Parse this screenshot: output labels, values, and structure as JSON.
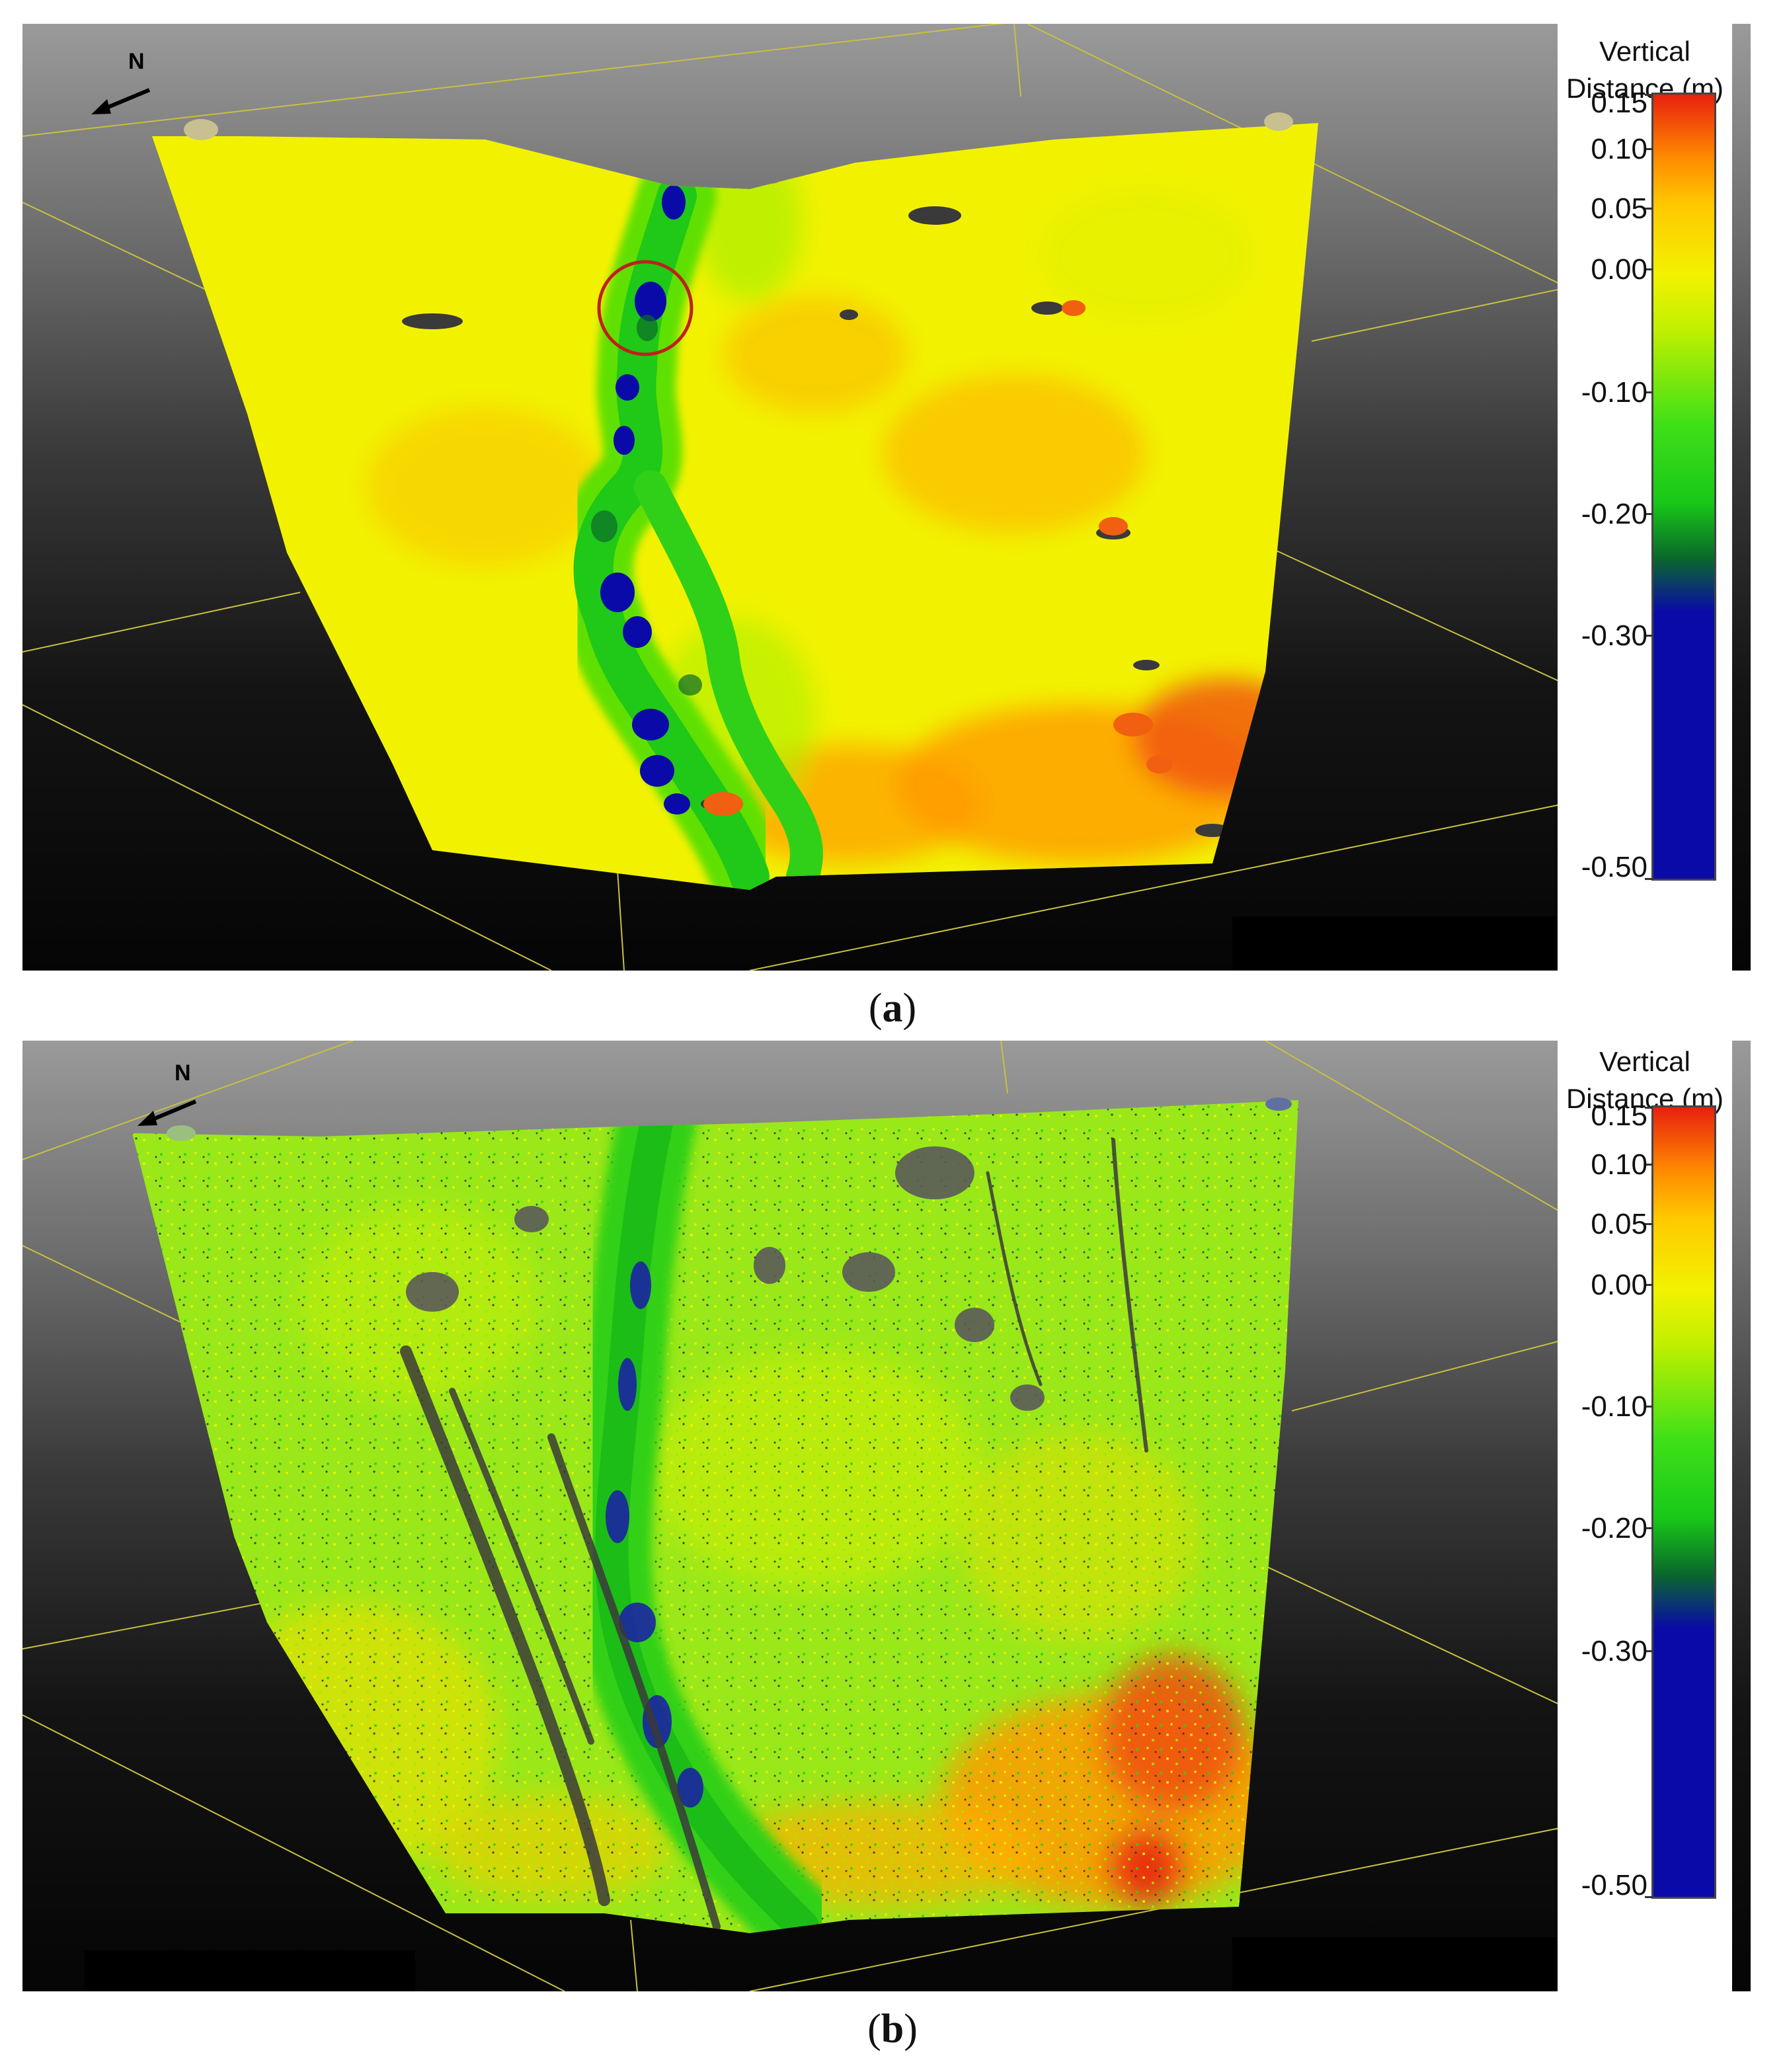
{
  "panels": [
    {
      "id": "a",
      "caption_letter": "a",
      "north_label": "N",
      "legend": {
        "title_line1": "Vertical",
        "title_line2": "Distance (m)",
        "ticks": [
          "0.15",
          "0.10",
          "0.05",
          "0.00",
          "-0.10",
          "-0.20",
          "-0.30",
          "-0.50"
        ]
      }
    },
    {
      "id": "b",
      "caption_letter": "b",
      "north_label": "N",
      "legend": {
        "title_line1": "Vertical",
        "title_line2": "Distance (m)",
        "ticks": [
          "0.15",
          "0.10",
          "0.05",
          "0.00",
          "-0.10",
          "-0.20",
          "-0.30",
          "-0.50"
        ]
      }
    }
  ],
  "colormap": {
    "red": "#e8200e",
    "orange": "#ff8a00",
    "yellow": "#f2f200",
    "green": "#22dd10",
    "dark_green": "#0a6a2a",
    "blue": "#0a0aa8",
    "highlight_circle": "#c0201a"
  },
  "icons": [
    "north-arrow-icon",
    "axes-triad-icon"
  ]
}
